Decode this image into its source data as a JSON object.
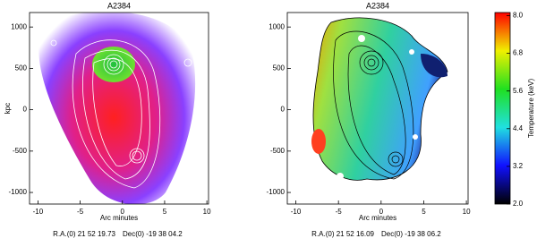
{
  "chart_data": [
    {
      "type": "image",
      "title": "A2384",
      "xlabel": "Arc minutes",
      "ylabel": "kpc",
      "xlim": [
        -11,
        10.2
      ],
      "ylim": [
        -1140,
        1175
      ],
      "xticks": [
        -10,
        -5,
        0,
        5,
        10
      ],
      "yticks": [
        -1000,
        -500,
        0,
        500,
        1000
      ],
      "ra": "R.A.(0) 21 52 19.73",
      "dec": "Dec(0) -19 38 04.2"
    },
    {
      "type": "image",
      "title": "A2384",
      "xlabel": "Arc minutes",
      "xlim": [
        -11,
        10.2
      ],
      "ylim": [
        -1140,
        1175
      ],
      "xticks": [
        -10,
        -5,
        0,
        5,
        10
      ],
      "yticks": [
        -1000,
        -500,
        0,
        500,
        1000
      ],
      "ra": "R.A.(0) 21 52 16.09",
      "dec": "Dec(0) -19 38 06.2"
    },
    {
      "type": "colorbar",
      "label": "Temperature (keV)",
      "lim": [
        2.0,
        8.1
      ],
      "ticks": [
        {
          "value": 2.0,
          "label": "2.0"
        },
        {
          "value": 3.2,
          "label": "3.2"
        },
        {
          "value": 4.4,
          "label": "4.4"
        },
        {
          "value": 5.6,
          "label": "5.6"
        },
        {
          "value": 6.8,
          "label": "6.8"
        },
        {
          "value": 8.0,
          "label": "8.0"
        }
      ]
    }
  ]
}
